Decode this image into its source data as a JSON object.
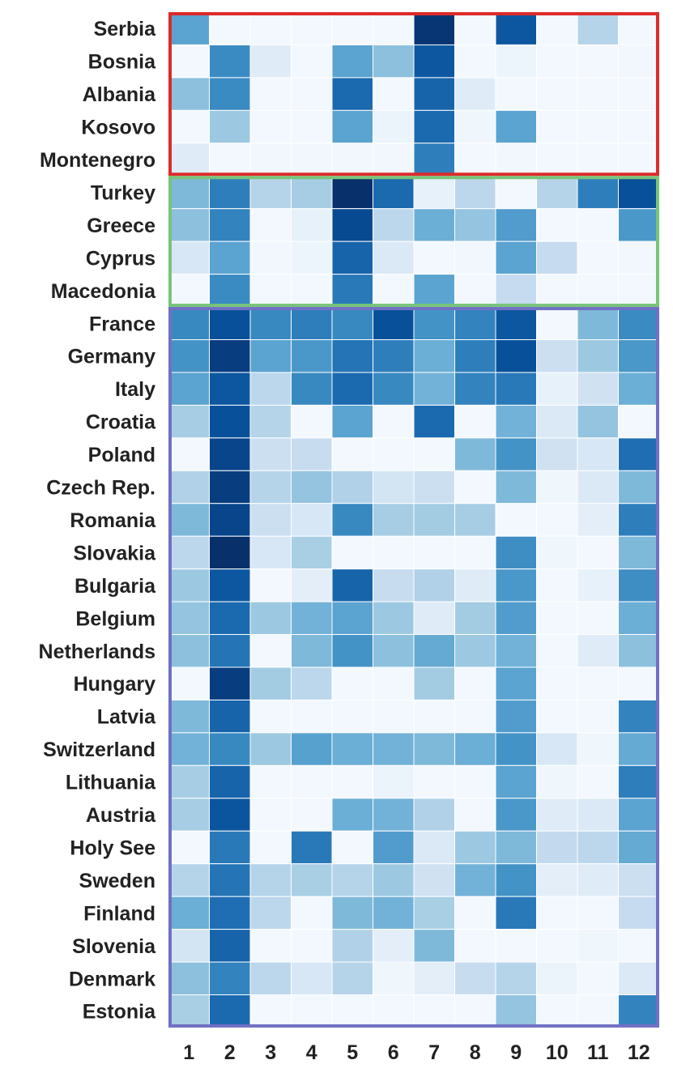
{
  "chart_data": {
    "type": "heatmap",
    "title": "",
    "xlabel": "",
    "ylabel": "",
    "columns": [
      "1",
      "2",
      "3",
      "4",
      "5",
      "6",
      "7",
      "8",
      "9",
      "10",
      "11",
      "12"
    ],
    "rows": [
      "Serbia",
      "Bosnia",
      "Albania",
      "Kosovo",
      "Montenegro",
      "Turkey",
      "Greece",
      "Cyprus",
      "Macedonia",
      "France",
      "Germany",
      "Italy",
      "Croatia",
      "Poland",
      "Czech Rep.",
      "Romania",
      "Slovakia",
      "Bulgaria",
      "Belgium",
      "Netherlands",
      "Hungary",
      "Latvia",
      "Switzerland",
      "Lithuania",
      "Austria",
      "Holy See",
      "Sweden",
      "Finland",
      "Slovenia",
      "Denmark",
      "Estonia"
    ],
    "color_scale": [
      "#f7fbff",
      "#deebf7",
      "#c6dbef",
      "#9ecae1",
      "#6baed6",
      "#4292c6",
      "#2171b5",
      "#08519c",
      "#08306b"
    ],
    "value_range": [
      0,
      1
    ],
    "values": [
      [
        0.55,
        0.02,
        0.02,
        0.02,
        0.02,
        0.02,
        0.98,
        0.02,
        0.85,
        0.02,
        0.3,
        0.02
      ],
      [
        0.02,
        0.65,
        0.12,
        0.02,
        0.55,
        0.42,
        0.85,
        0.02,
        0.05,
        0.02,
        0.02,
        0.03
      ],
      [
        0.42,
        0.65,
        0.02,
        0.02,
        0.78,
        0.02,
        0.8,
        0.12,
        0.02,
        0.02,
        0.02,
        0.02
      ],
      [
        0.02,
        0.38,
        0.02,
        0.02,
        0.55,
        0.06,
        0.78,
        0.04,
        0.55,
        0.02,
        0.02,
        0.02
      ],
      [
        0.12,
        0.02,
        0.03,
        0.03,
        0.03,
        0.03,
        0.7,
        0.02,
        0.03,
        0.02,
        0.02,
        0.02
      ],
      [
        0.45,
        0.7,
        0.3,
        0.35,
        1.0,
        0.78,
        0.08,
        0.28,
        0.02,
        0.3,
        0.7,
        0.88
      ],
      [
        0.42,
        0.68,
        0.02,
        0.08,
        0.9,
        0.28,
        0.5,
        0.4,
        0.58,
        0.02,
        0.02,
        0.6
      ],
      [
        0.16,
        0.55,
        0.03,
        0.05,
        0.8,
        0.14,
        0.02,
        0.03,
        0.55,
        0.25,
        0.02,
        0.03
      ],
      [
        0.02,
        0.65,
        0.02,
        0.02,
        0.72,
        0.02,
        0.55,
        0.02,
        0.25,
        0.02,
        0.02,
        0.02
      ],
      [
        0.66,
        0.88,
        0.66,
        0.7,
        0.66,
        0.88,
        0.62,
        0.68,
        0.85,
        0.02,
        0.45,
        0.65
      ],
      [
        0.62,
        0.95,
        0.55,
        0.6,
        0.74,
        0.7,
        0.5,
        0.7,
        0.88,
        0.22,
        0.38,
        0.6
      ],
      [
        0.55,
        0.85,
        0.28,
        0.66,
        0.78,
        0.66,
        0.48,
        0.68,
        0.72,
        0.08,
        0.2,
        0.5
      ],
      [
        0.35,
        0.88,
        0.3,
        0.02,
        0.55,
        0.02,
        0.78,
        0.02,
        0.48,
        0.14,
        0.4,
        0.02
      ],
      [
        0.02,
        0.92,
        0.22,
        0.24,
        0.02,
        0.02,
        0.02,
        0.45,
        0.62,
        0.2,
        0.16,
        0.76
      ],
      [
        0.32,
        0.95,
        0.3,
        0.4,
        0.32,
        0.18,
        0.22,
        0.02,
        0.45,
        0.04,
        0.14,
        0.45
      ],
      [
        0.45,
        0.92,
        0.22,
        0.16,
        0.66,
        0.35,
        0.36,
        0.35,
        0.02,
        0.02,
        0.1,
        0.7
      ],
      [
        0.28,
        1.0,
        0.16,
        0.34,
        0.02,
        0.02,
        0.02,
        0.02,
        0.64,
        0.04,
        0.02,
        0.45
      ],
      [
        0.38,
        0.85,
        0.02,
        0.1,
        0.8,
        0.24,
        0.32,
        0.12,
        0.6,
        0.02,
        0.08,
        0.64
      ],
      [
        0.4,
        0.78,
        0.38,
        0.48,
        0.55,
        0.38,
        0.12,
        0.36,
        0.58,
        0.02,
        0.02,
        0.5
      ],
      [
        0.42,
        0.74,
        0.02,
        0.45,
        0.62,
        0.42,
        0.52,
        0.38,
        0.48,
        0.02,
        0.12,
        0.42
      ],
      [
        0.02,
        0.95,
        0.36,
        0.28,
        0.02,
        0.02,
        0.36,
        0.02,
        0.55,
        0.02,
        0.02,
        0.02
      ],
      [
        0.45,
        0.8,
        0.02,
        0.02,
        0.02,
        0.02,
        0.02,
        0.02,
        0.58,
        0.02,
        0.02,
        0.68
      ],
      [
        0.48,
        0.66,
        0.38,
        0.56,
        0.5,
        0.48,
        0.45,
        0.5,
        0.62,
        0.16,
        0.04,
        0.52
      ],
      [
        0.35,
        0.8,
        0.02,
        0.02,
        0.02,
        0.06,
        0.02,
        0.02,
        0.55,
        0.04,
        0.02,
        0.7
      ],
      [
        0.35,
        0.86,
        0.02,
        0.02,
        0.5,
        0.48,
        0.32,
        0.02,
        0.6,
        0.12,
        0.14,
        0.55
      ],
      [
        0.02,
        0.72,
        0.02,
        0.72,
        0.02,
        0.58,
        0.14,
        0.38,
        0.45,
        0.26,
        0.28,
        0.52
      ],
      [
        0.3,
        0.74,
        0.3,
        0.34,
        0.3,
        0.38,
        0.2,
        0.48,
        0.62,
        0.1,
        0.12,
        0.22
      ],
      [
        0.5,
        0.76,
        0.28,
        0.02,
        0.45,
        0.48,
        0.34,
        0.02,
        0.72,
        0.02,
        0.02,
        0.25
      ],
      [
        0.18,
        0.8,
        0.02,
        0.02,
        0.32,
        0.1,
        0.45,
        0.02,
        0.02,
        0.02,
        0.04,
        0.02
      ],
      [
        0.42,
        0.68,
        0.28,
        0.16,
        0.3,
        0.04,
        0.1,
        0.24,
        0.3,
        0.06,
        0.02,
        0.14
      ],
      [
        0.34,
        0.78,
        0.02,
        0.02,
        0.02,
        0.02,
        0.02,
        0.02,
        0.4,
        0.02,
        0.02,
        0.68
      ]
    ],
    "groups": [
      {
        "rows": [
          0,
          4
        ],
        "color": "#dd2b2b"
      },
      {
        "rows": [
          5,
          8
        ],
        "color": "#78c47a"
      },
      {
        "rows": [
          9,
          30
        ],
        "color": "#7070c4"
      }
    ]
  }
}
